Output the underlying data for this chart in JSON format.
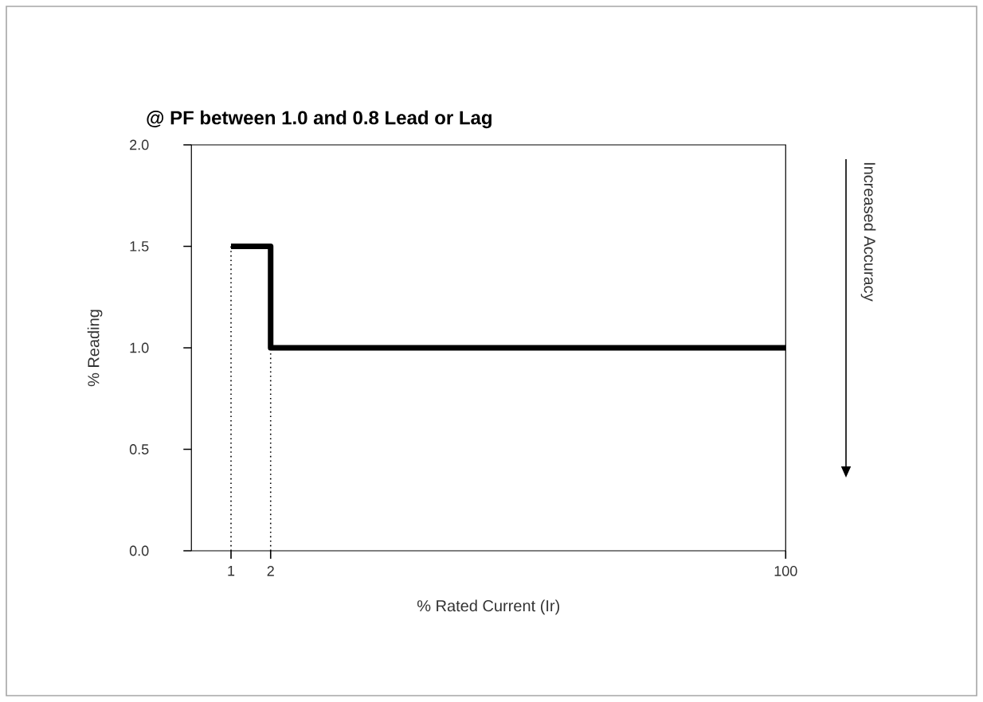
{
  "chart_data": {
    "type": "step",
    "title": "@ PF between 1.0 and 0.8 Lead or Lag",
    "xlabel": "% Rated Current (Ir)",
    "ylabel": "% Reading",
    "annotations": [
      "Increased Accuracy"
    ],
    "categories": [
      "1",
      "2",
      null,
      null,
      null,
      null,
      null,
      null,
      null,
      null,
      null,
      null,
      null,
      null,
      "100"
    ],
    "series": [
      {
        "color": "#000000",
        "values": [
          1.5,
          1.0,
          1.0,
          1.0,
          1.0,
          1.0,
          1.0,
          1.0,
          1.0,
          1.0,
          1.0,
          1.0,
          1.0,
          1.0,
          1.0
        ]
      }
    ],
    "ylim": [
      0,
      2
    ],
    "yticks": [
      {
        "value": 0,
        "label": "0.0"
      },
      {
        "value": 0.5,
        "label": "0.5"
      },
      {
        "value": 1,
        "label": "1.0"
      },
      {
        "value": 1.5,
        "label": "1.5"
      },
      {
        "value": 2,
        "label": "2.0"
      }
    ],
    "ref_lines": [
      {
        "axis": "x",
        "value": "1",
        "line_style": "dotted"
      },
      {
        "axis": "x",
        "value": "2",
        "line_style": "dotted"
      }
    ],
    "line_style": "solid",
    "marker": "none"
  }
}
